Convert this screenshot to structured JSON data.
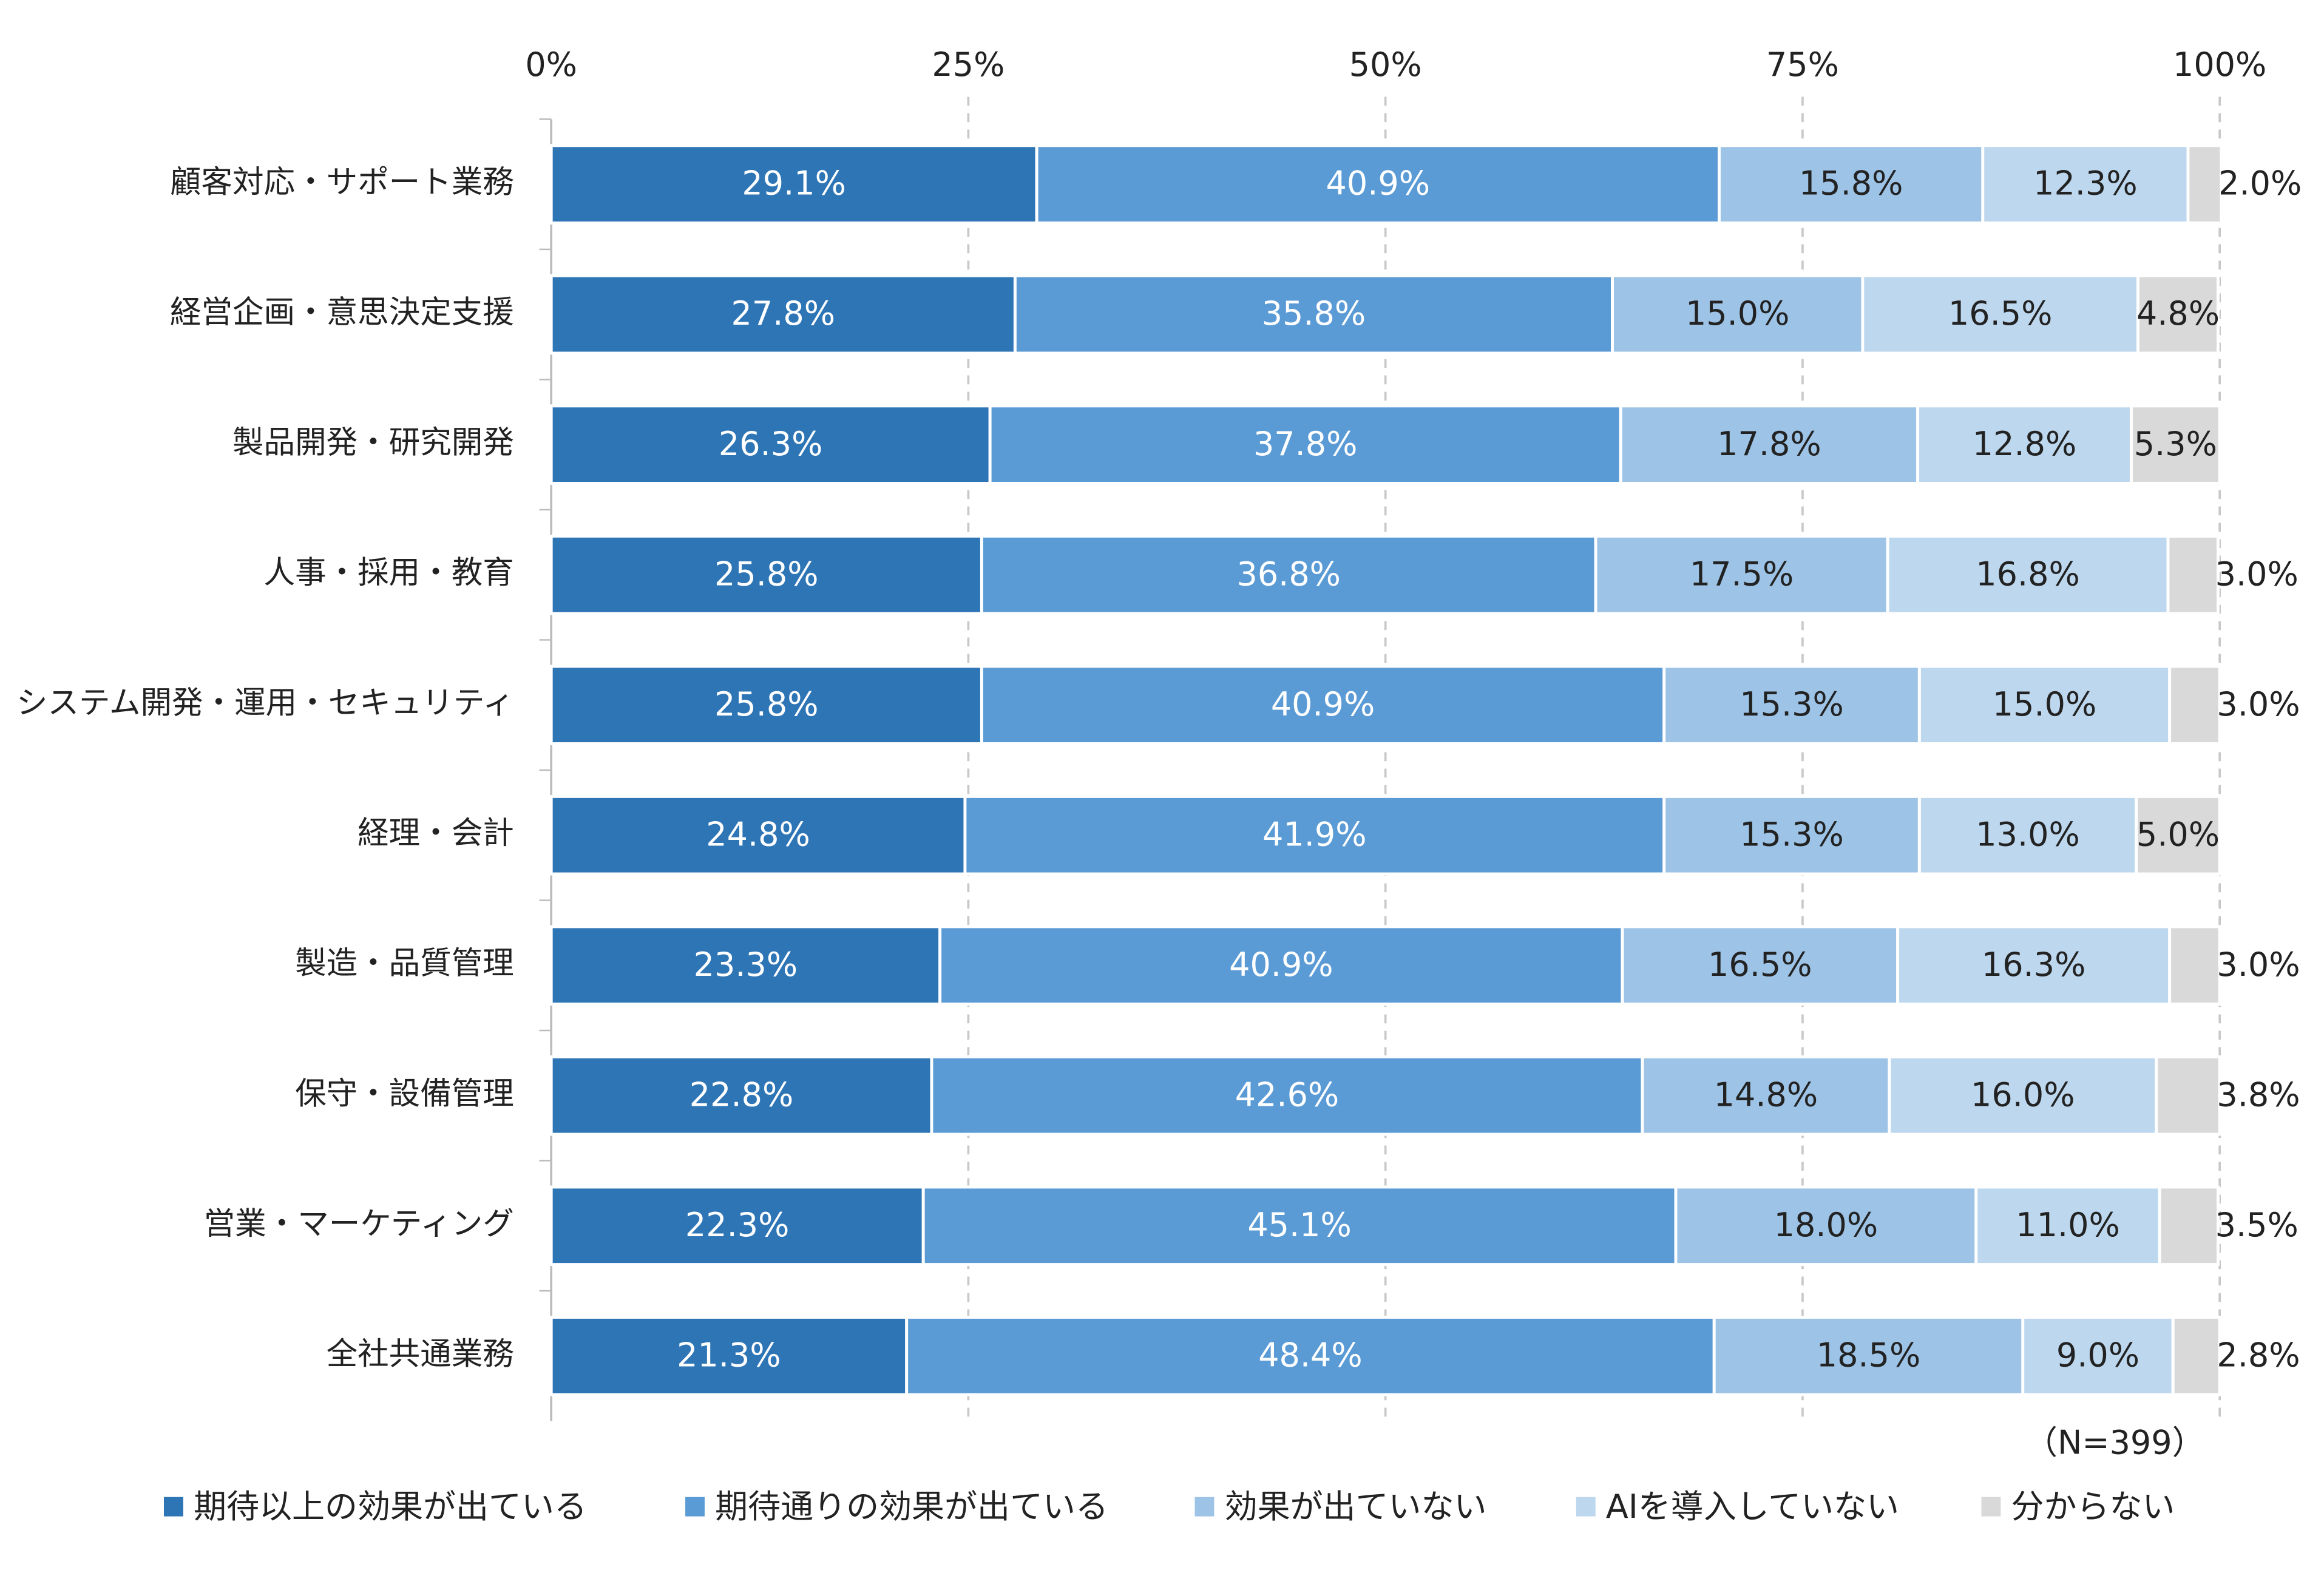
{
  "chart_data": {
    "type": "stacked-barh",
    "categories": [
      "顧客対応・サポート業務",
      "経営企画・意思決定支援",
      "製品開発・研究開発",
      "人事・採用・教育",
      "システム開発・運用・セキュリティ",
      "経理・会計",
      "製造・品質管理",
      "保守・設備管理",
      "営業・マーケティング",
      "全社共通業務"
    ],
    "series": [
      {
        "name": "期待以上の効果が出ている",
        "color": "#2e75b6",
        "values": [
          29.1,
          27.8,
          26.3,
          25.8,
          25.8,
          24.8,
          23.3,
          22.8,
          22.3,
          21.3
        ],
        "value_labels": [
          "29.1%",
          "27.8%",
          "26.3%",
          "25.8%",
          "25.8%",
          "24.8%",
          "23.3%",
          "22.8%",
          "22.3%",
          "21.3%"
        ]
      },
      {
        "name": "期待通りの効果が出ている",
        "color": "#5b9bd5",
        "values": [
          40.9,
          35.8,
          37.8,
          36.8,
          40.9,
          41.9,
          40.9,
          42.6,
          45.1,
          48.4
        ],
        "value_labels": [
          "40.9%",
          "35.8%",
          "37.8%",
          "36.8%",
          "40.9%",
          "41.9%",
          "40.9%",
          "42.6%",
          "45.1%",
          "48.4%"
        ]
      },
      {
        "name": "効果が出ていない",
        "color": "#9dc3e6",
        "values": [
          15.8,
          15.0,
          17.8,
          17.5,
          15.3,
          15.3,
          16.5,
          14.8,
          18.0,
          18.5
        ],
        "value_labels": [
          "15.8%",
          "15.0%",
          "17.8%",
          "17.5%",
          "15.3%",
          "15.3%",
          "16.5%",
          "14.8%",
          "18.0%",
          "18.5%"
        ]
      },
      {
        "name": "AIを導入していない",
        "color": "#bdd7ee",
        "values": [
          12.3,
          16.5,
          12.8,
          16.8,
          15.0,
          13.0,
          16.3,
          16.0,
          11.0,
          9.0
        ],
        "value_labels": [
          "12.3%",
          "16.5%",
          "12.8%",
          "16.8%",
          "15.0%",
          "13.0%",
          "16.3%",
          "16.0%",
          "11.0%",
          "9.0%"
        ]
      },
      {
        "name": "分からない",
        "color": "#d9d9d9",
        "values": [
          2.0,
          4.8,
          5.3,
          3.0,
          3.0,
          5.0,
          3.0,
          3.8,
          3.5,
          2.8
        ],
        "value_labels": [
          "2.0%",
          "4.8%",
          "5.3%",
          "3.0%",
          "3.0%",
          "5.0%",
          "3.0%",
          "3.8%",
          "3.5%",
          "2.8%"
        ]
      }
    ],
    "xlim": [
      0,
      100
    ],
    "xticks": [
      {
        "value": 0,
        "label": "0%"
      },
      {
        "value": 25,
        "label": "25%"
      },
      {
        "value": 50,
        "label": "50%"
      },
      {
        "value": 75,
        "label": "75%"
      },
      {
        "value": 100,
        "label": "100%"
      }
    ],
    "grid": true,
    "annotation": "（N=399）",
    "legend": "bottom"
  }
}
